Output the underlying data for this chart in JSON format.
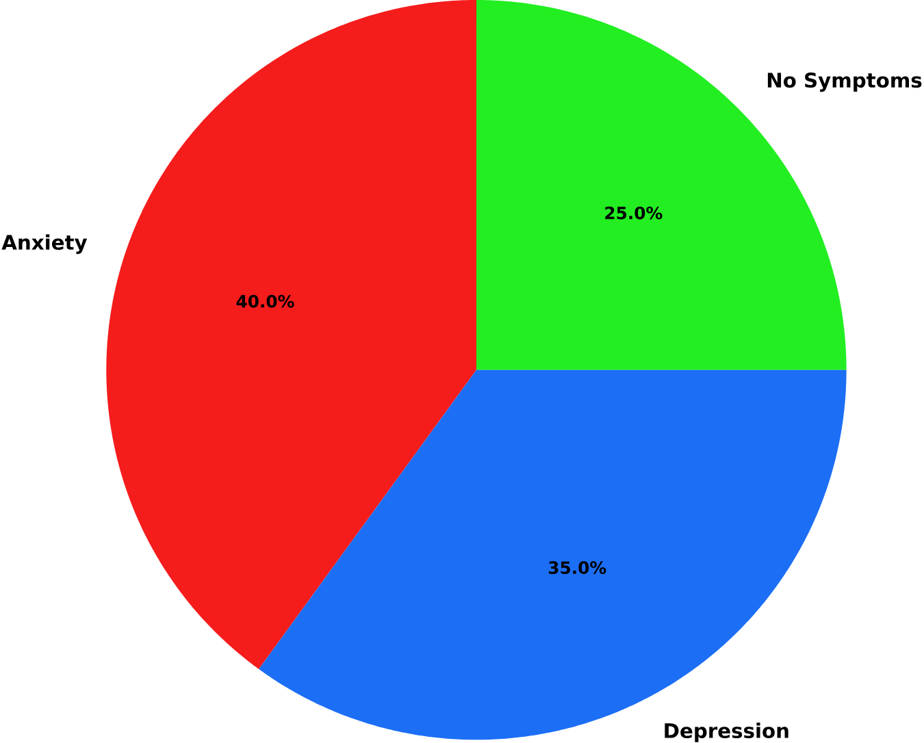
{
  "chart_data": {
    "type": "pie",
    "categories": [
      "No Symptoms",
      "Anxiety",
      "Depression"
    ],
    "values": [
      25,
      40,
      35
    ],
    "colors": [
      "#22ee22",
      "#f51c1c",
      "#1c6ef5"
    ],
    "value_labels": [
      "25.0%",
      "40.0%",
      "35.0%"
    ]
  }
}
